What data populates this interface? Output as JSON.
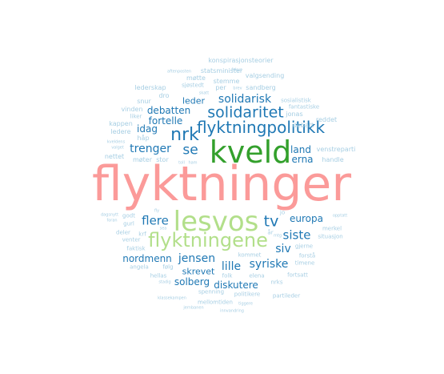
{
  "chart_data": {
    "type": "wordcloud",
    "palette": {
      "dark": "#1f78b4",
      "light": "#a6cee3",
      "green": "#33a02c",
      "lightgreen": "#b2df8a",
      "pink": "#fb9a99"
    },
    "words": [
      {
        "text": "flyktninger",
        "weight": 60,
        "color": "pink"
      },
      {
        "text": "kveld",
        "weight": 38,
        "color": "green"
      },
      {
        "text": "lesvos",
        "weight": 34,
        "color": "lightgreen"
      },
      {
        "text": "flyktningene",
        "weight": 24,
        "color": "lightgreen"
      },
      {
        "text": "nrk",
        "weight": 22,
        "color": "dark"
      },
      {
        "text": "flyktningpolitikk",
        "weight": 20,
        "color": "dark"
      },
      {
        "text": "solidaritet",
        "weight": 19,
        "color": "dark"
      },
      {
        "text": "tv",
        "weight": 19,
        "color": "dark"
      },
      {
        "text": "se",
        "weight": 17,
        "color": "dark"
      },
      {
        "text": "flere",
        "weight": 15,
        "color": "dark"
      },
      {
        "text": "siste",
        "weight": 15,
        "color": "dark"
      },
      {
        "text": "solidarisk",
        "weight": 14,
        "color": "dark"
      },
      {
        "text": "jensen",
        "weight": 14,
        "color": "dark"
      },
      {
        "text": "lille",
        "weight": 14,
        "color": "dark"
      },
      {
        "text": "syriske",
        "weight": 14,
        "color": "dark"
      },
      {
        "text": "trenger",
        "weight": 14,
        "color": "dark"
      },
      {
        "text": "debatten",
        "weight": 12,
        "color": "dark"
      },
      {
        "text": "fortelle",
        "weight": 12,
        "color": "dark"
      },
      {
        "text": "siv",
        "weight": 14,
        "color": "dark"
      },
      {
        "text": "nordmenn",
        "weight": 12,
        "color": "dark"
      },
      {
        "text": "europa",
        "weight": 12,
        "color": "dark"
      },
      {
        "text": "solberg",
        "weight": 12,
        "color": "dark"
      },
      {
        "text": "diskutere",
        "weight": 12,
        "color": "dark"
      },
      {
        "text": "land",
        "weight": 12,
        "color": "dark"
      },
      {
        "text": "erna",
        "weight": 12,
        "color": "dark"
      },
      {
        "text": "idag",
        "weight": 12,
        "color": "dark"
      },
      {
        "text": "leder",
        "weight": 11,
        "color": "dark"
      },
      {
        "text": "skrevet",
        "weight": 11,
        "color": "dark"
      },
      {
        "text": "konspirasjonsteorier",
        "weight": 8,
        "color": "light"
      },
      {
        "text": "statsminister",
        "weight": 8,
        "color": "light"
      },
      {
        "text": "møtte",
        "weight": 8,
        "color": "light"
      },
      {
        "text": "valgsending",
        "weight": 8,
        "color": "light"
      },
      {
        "text": "sjøstedt",
        "weight": 7,
        "color": "light"
      },
      {
        "text": "stemme",
        "weight": 8,
        "color": "light"
      },
      {
        "text": "lederskap",
        "weight": 8,
        "color": "light"
      },
      {
        "text": "sandberg",
        "weight": 8,
        "color": "light"
      },
      {
        "text": "dro",
        "weight": 8,
        "color": "light"
      },
      {
        "text": "per",
        "weight": 8,
        "color": "light"
      },
      {
        "text": "sosialistisk",
        "weight": 7,
        "color": "light"
      },
      {
        "text": "fantastiske",
        "weight": 7,
        "color": "light"
      },
      {
        "text": "snur",
        "weight": 8,
        "color": "light"
      },
      {
        "text": "vinden",
        "weight": 8,
        "color": "light"
      },
      {
        "text": "jonas",
        "weight": 8,
        "color": "light"
      },
      {
        "text": "liker",
        "weight": 7,
        "color": "light"
      },
      {
        "text": "kappen",
        "weight": 8,
        "color": "light"
      },
      {
        "text": "ledere",
        "weight": 8,
        "color": "light"
      },
      {
        "text": "håp",
        "weight": 8,
        "color": "light"
      },
      {
        "text": "reddet",
        "weight": 8,
        "color": "light"
      },
      {
        "text": "debatt",
        "weight": 8,
        "color": "light"
      },
      {
        "text": "venstreparti",
        "weight": 8,
        "color": "light"
      },
      {
        "text": "nettet",
        "weight": 8,
        "color": "light"
      },
      {
        "text": "møter",
        "weight": 8,
        "color": "light"
      },
      {
        "text": "stor",
        "weight": 8,
        "color": "light"
      },
      {
        "text": "handle",
        "weight": 8,
        "color": "light"
      },
      {
        "text": "godt",
        "weight": 7,
        "color": "light"
      },
      {
        "text": "gurl",
        "weight": 7,
        "color": "light"
      },
      {
        "text": "deler",
        "weight": 7,
        "color": "light"
      },
      {
        "text": "krf",
        "weight": 7,
        "color": "light"
      },
      {
        "text": "venter",
        "weight": 7,
        "color": "light"
      },
      {
        "text": "faktisk",
        "weight": 7,
        "color": "light"
      },
      {
        "text": "angela",
        "weight": 7,
        "color": "light"
      },
      {
        "text": "følg",
        "weight": 7,
        "color": "light"
      },
      {
        "text": "hellas",
        "weight": 7,
        "color": "light"
      },
      {
        "text": "merkel",
        "weight": 7,
        "color": "light"
      },
      {
        "text": "gjerne",
        "weight": 7,
        "color": "light"
      },
      {
        "text": "situasjon",
        "weight": 7,
        "color": "light"
      },
      {
        "text": "forstå",
        "weight": 7,
        "color": "light"
      },
      {
        "text": "kommet",
        "weight": 7,
        "color": "light"
      },
      {
        "text": "folk",
        "weight": 7,
        "color": "light"
      },
      {
        "text": "elena",
        "weight": 7,
        "color": "light"
      },
      {
        "text": "timene",
        "weight": 7,
        "color": "light"
      },
      {
        "text": "fortsatt",
        "weight": 7,
        "color": "light"
      },
      {
        "text": "nrks",
        "weight": 7,
        "color": "light"
      },
      {
        "text": "spenning",
        "weight": 7,
        "color": "light"
      },
      {
        "text": "politikere",
        "weight": 7,
        "color": "light"
      },
      {
        "text": "partileder",
        "weight": 7,
        "color": "light"
      },
      {
        "text": "mellomtiden",
        "weight": 7,
        "color": "light"
      },
      {
        "text": "år",
        "weight": 7,
        "color": "light"
      },
      {
        "text": "jo",
        "weight": 7,
        "color": "light"
      },
      {
        "text": "aftenposten",
        "weight": 5,
        "color": "light"
      },
      {
        "text": "fokus",
        "weight": 5,
        "color": "light"
      },
      {
        "text": "skatt",
        "weight": 5,
        "color": "light"
      },
      {
        "text": "brev",
        "weight": 5,
        "color": "light"
      },
      {
        "text": "kveldens",
        "weight": 5,
        "color": "light"
      },
      {
        "text": "valget",
        "weight": 5,
        "color": "light"
      },
      {
        "text": "toll",
        "weight": 5,
        "color": "light"
      },
      {
        "text": "ham",
        "weight": 5,
        "color": "light"
      },
      {
        "text": "dagsnytt",
        "weight": 5,
        "color": "light"
      },
      {
        "text": "foran",
        "weight": 5,
        "color": "light"
      },
      {
        "text": "fly",
        "weight": 5,
        "color": "light"
      },
      {
        "text": "opptatt",
        "weight": 5,
        "color": "light"
      },
      {
        "text": "sea",
        "weight": 5,
        "color": "light"
      },
      {
        "text": "mtg",
        "weight": 5,
        "color": "light"
      },
      {
        "text": "stadig",
        "weight": 5,
        "color": "light"
      },
      {
        "text": "klassekampen",
        "weight": 5,
        "color": "light"
      },
      {
        "text": "jernbanen",
        "weight": 5,
        "color": "light"
      },
      {
        "text": "innvandring",
        "weight": 5,
        "color": "light"
      },
      {
        "text": "tiggere",
        "weight": 5,
        "color": "light"
      }
    ]
  }
}
